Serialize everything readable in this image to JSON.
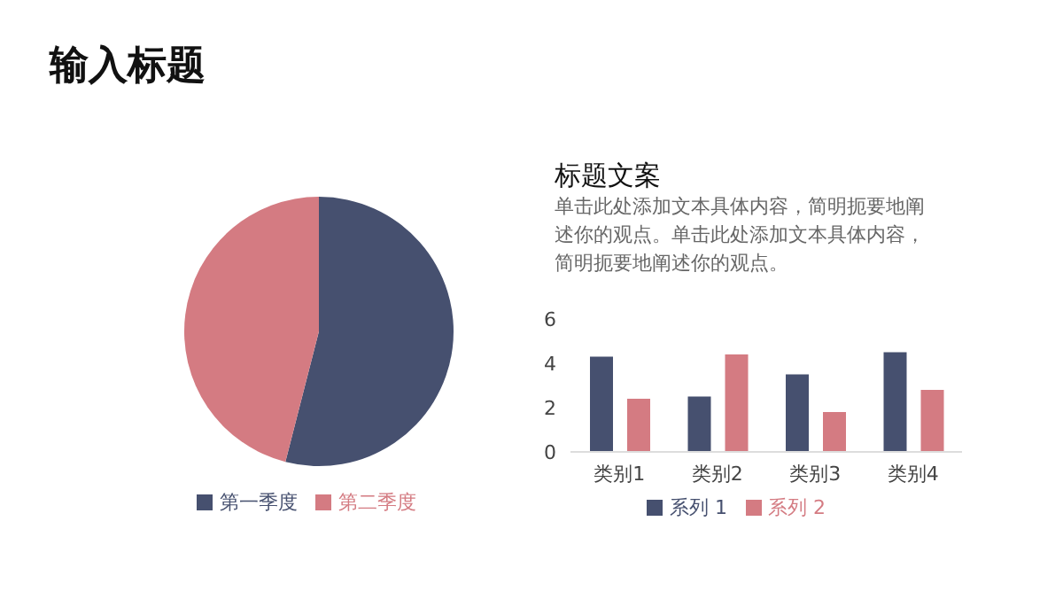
{
  "chart_data": [
    {
      "type": "pie",
      "title": "输入标题",
      "categories": [
        "第一季度",
        "第二季度"
      ],
      "values": [
        54,
        46
      ],
      "colors": [
        "#46506f",
        "#d47b82"
      ],
      "legend": "bottom"
    },
    {
      "type": "bar",
      "title": "标题文案",
      "subtitle": "单击此处添加文本具体内容，简明扼要地阐述你的观点。单击此处添加文本具体内容，简明扼要地阐述你的观点。",
      "categories": [
        "类别1",
        "类别2",
        "类别3",
        "类别4"
      ],
      "series": [
        {
          "name": "系列 1",
          "color": "#46506f",
          "values": [
            4.3,
            2.5,
            3.5,
            4.5
          ]
        },
        {
          "name": "系列 2",
          "color": "#d47b82",
          "values": [
            2.4,
            4.4,
            1.8,
            2.8
          ]
        }
      ],
      "ylim": [
        0,
        6
      ],
      "yticks": [
        0,
        2,
        4,
        6
      ],
      "grid": false,
      "legend": "bottom"
    }
  ]
}
